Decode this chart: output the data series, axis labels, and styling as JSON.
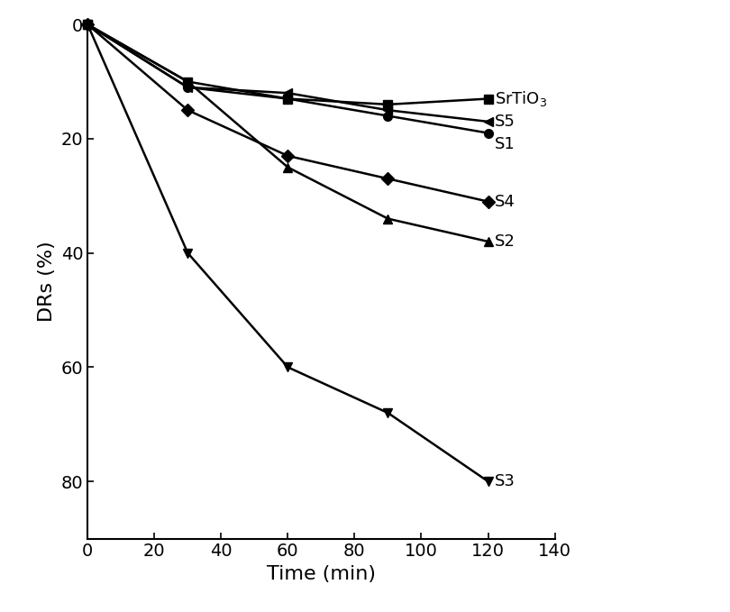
{
  "series": [
    {
      "label": "SrTiO$_3$",
      "x": [
        0,
        30,
        60,
        90,
        120
      ],
      "y": [
        0,
        10,
        13,
        14,
        13
      ],
      "marker": "s",
      "markersize": 7,
      "linewidth": 1.8
    },
    {
      "label": "S5",
      "x": [
        0,
        30,
        60,
        90,
        120
      ],
      "y": [
        0,
        11,
        12,
        15,
        17
      ],
      "marker": "<",
      "markersize": 7,
      "linewidth": 1.8
    },
    {
      "label": "S1",
      "x": [
        0,
        30,
        60,
        90,
        120
      ],
      "y": [
        0,
        11,
        13,
        16,
        19
      ],
      "marker": "o",
      "markersize": 7,
      "linewidth": 1.8
    },
    {
      "label": "S4",
      "x": [
        0,
        30,
        60,
        90,
        120
      ],
      "y": [
        0,
        15,
        23,
        27,
        31
      ],
      "marker": "D",
      "markersize": 7,
      "linewidth": 1.8
    },
    {
      "label": "S2",
      "x": [
        0,
        30,
        60,
        90,
        120
      ],
      "y": [
        0,
        10,
        25,
        34,
        38
      ],
      "marker": "^",
      "markersize": 7,
      "linewidth": 1.8
    },
    {
      "label": "S3",
      "x": [
        0,
        30,
        60,
        90,
        120
      ],
      "y": [
        0,
        40,
        60,
        68,
        80
      ],
      "marker": "v",
      "markersize": 7,
      "linewidth": 1.8
    }
  ],
  "label_y_positions": [
    13,
    17,
    19,
    31,
    38,
    80
  ],
  "xlabel": "Time (min)",
  "ylabel": "DRs (%)",
  "xlim": [
    0,
    140
  ],
  "ylim": [
    90,
    0
  ],
  "xticks": [
    0,
    20,
    40,
    60,
    80,
    100,
    120,
    140
  ],
  "yticks": [
    0,
    20,
    40,
    60,
    80
  ],
  "color": "black",
  "xlabel_fontsize": 16,
  "ylabel_fontsize": 16,
  "tick_fontsize": 14,
  "annotation_fontsize": 13,
  "figsize": [
    8.1,
    6.79
  ],
  "dpi": 100
}
